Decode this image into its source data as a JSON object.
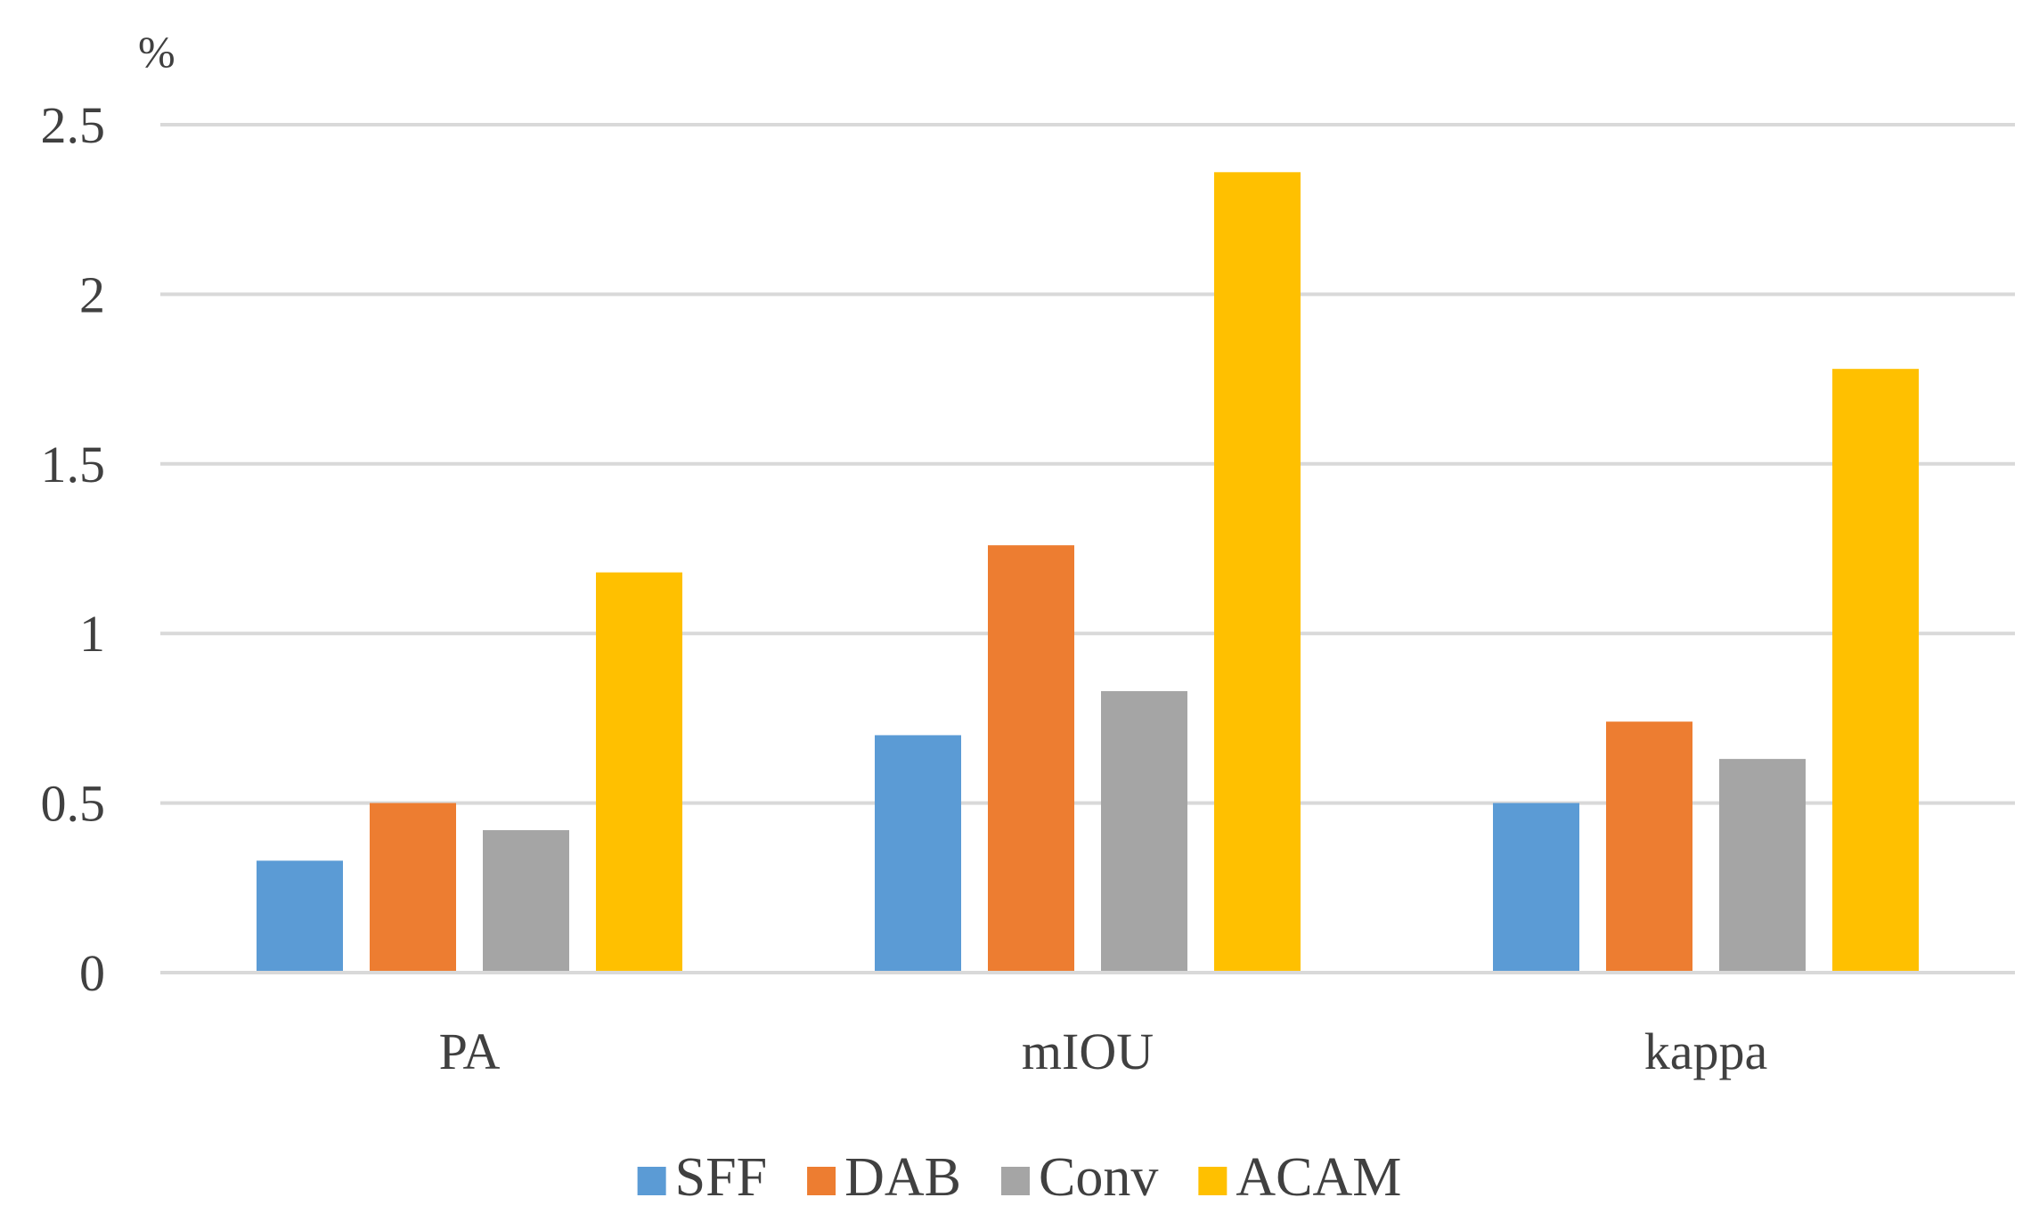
{
  "chart_data": {
    "type": "bar",
    "title": "",
    "xlabel": "",
    "ylabel": "%",
    "ylim": [
      0,
      2.5
    ],
    "yticks": [
      0,
      0.5,
      1,
      1.5,
      2,
      2.5
    ],
    "ytick_labels": [
      "0",
      "0.5",
      "1",
      "1.5",
      "2",
      "2.5"
    ],
    "grid": true,
    "legend_position": "bottom",
    "categories": [
      "PA",
      "mIOU",
      "kappa"
    ],
    "series": [
      {
        "name": "SFF",
        "color": "#5b9bd5",
        "values": [
          0.33,
          0.7,
          0.5
        ]
      },
      {
        "name": "DAB",
        "color": "#ed7d31",
        "values": [
          0.5,
          1.26,
          0.74
        ]
      },
      {
        "name": "Conv",
        "color": "#a5a5a5",
        "values": [
          0.42,
          0.83,
          0.63
        ]
      },
      {
        "name": "ACAM",
        "color": "#ffc000",
        "values": [
          1.18,
          2.36,
          1.78
        ]
      }
    ]
  }
}
